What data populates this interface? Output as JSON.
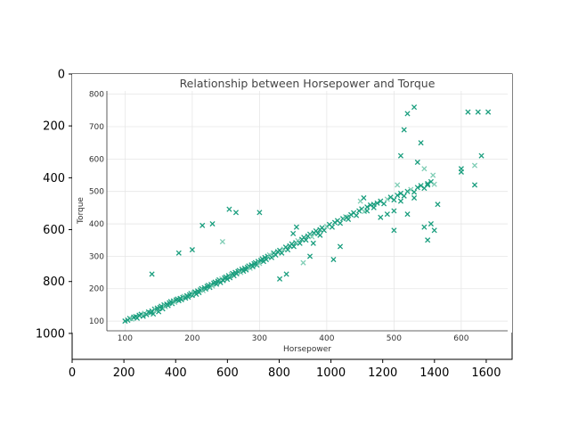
{
  "figure": {
    "outer_axes": {
      "x_ticks": [
        "0",
        "200",
        "400",
        "600",
        "800",
        "1000",
        "1200",
        "1400",
        "1600"
      ],
      "y_ticks": [
        "0",
        "200",
        "400",
        "600",
        "800",
        "1000"
      ]
    }
  },
  "chart_data": {
    "type": "scatter",
    "title": "Relationship between Horsepower and Torque",
    "xlabel": "Horsepower",
    "ylabel": "Torque",
    "xlim": [
      73,
      669
    ],
    "ylim": [
      70,
      810
    ],
    "x_ticks": [
      100,
      200,
      300,
      400,
      500,
      600
    ],
    "y_ticks": [
      100,
      200,
      300,
      400,
      500,
      600,
      700,
      800
    ],
    "grid": true,
    "marker": "x",
    "colors": {
      "primary": "#1a9e7e",
      "light": "#7fcdb5"
    },
    "points": [
      [
        100,
        100
      ],
      [
        104,
        103
      ],
      [
        107,
        108
      ],
      [
        110,
        106
      ],
      [
        113,
        112
      ],
      [
        116,
        114
      ],
      [
        118,
        109
      ],
      [
        121,
        118
      ],
      [
        124,
        121
      ],
      [
        127,
        115
      ],
      [
        129,
        124
      ],
      [
        132,
        120
      ],
      [
        135,
        128
      ],
      [
        138,
        126
      ],
      [
        140,
        131
      ],
      [
        142,
        122
      ],
      [
        144,
        137
      ],
      [
        146,
        133
      ],
      [
        148,
        140
      ],
      [
        150,
        129
      ],
      [
        152,
        142
      ],
      [
        154,
        146
      ],
      [
        156,
        138
      ],
      [
        158,
        150
      ],
      [
        160,
        144
      ],
      [
        162,
        152
      ],
      [
        164,
        148
      ],
      [
        166,
        156
      ],
      [
        168,
        160
      ],
      [
        170,
        154
      ],
      [
        172,
        162
      ],
      [
        174,
        158
      ],
      [
        176,
        165
      ],
      [
        178,
        168
      ],
      [
        180,
        163
      ],
      [
        182,
        170
      ],
      [
        184,
        166
      ],
      [
        186,
        173
      ],
      [
        188,
        176
      ],
      [
        190,
        171
      ],
      [
        192,
        178
      ],
      [
        194,
        174
      ],
      [
        196,
        181
      ],
      [
        198,
        185
      ],
      [
        200,
        179
      ],
      [
        202,
        187
      ],
      [
        204,
        190
      ],
      [
        206,
        183
      ],
      [
        208,
        193
      ],
      [
        210,
        188
      ],
      [
        212,
        196
      ],
      [
        214,
        200
      ],
      [
        216,
        194
      ],
      [
        218,
        203
      ],
      [
        220,
        199
      ],
      [
        222,
        207
      ],
      [
        224,
        210
      ],
      [
        226,
        204
      ],
      [
        228,
        213
      ],
      [
        230,
        208
      ],
      [
        232,
        217
      ],
      [
        234,
        220
      ],
      [
        236,
        214
      ],
      [
        238,
        223
      ],
      [
        240,
        227
      ],
      [
        242,
        219
      ],
      [
        244,
        230
      ],
      [
        246,
        225
      ],
      [
        248,
        233
      ],
      [
        250,
        236
      ],
      [
        252,
        229
      ],
      [
        254,
        240
      ],
      [
        256,
        234
      ],
      [
        258,
        244
      ],
      [
        260,
        247
      ],
      [
        262,
        240
      ],
      [
        264,
        250
      ],
      [
        266,
        246
      ],
      [
        268,
        253
      ],
      [
        270,
        256
      ],
      [
        272,
        250
      ],
      [
        274,
        260
      ],
      [
        276,
        254
      ],
      [
        278,
        263
      ],
      [
        280,
        258
      ],
      [
        282,
        266
      ],
      [
        284,
        270
      ],
      [
        286,
        263
      ],
      [
        288,
        273
      ],
      [
        290,
        268
      ],
      [
        292,
        277
      ],
      [
        294,
        280
      ],
      [
        296,
        273
      ],
      [
        298,
        284
      ],
      [
        300,
        278
      ],
      [
        302,
        287
      ],
      [
        304,
        292
      ],
      [
        306,
        284
      ],
      [
        308,
        296
      ],
      [
        310,
        290
      ],
      [
        312,
        300
      ],
      [
        315,
        304
      ],
      [
        318,
        296
      ],
      [
        321,
        310
      ],
      [
        324,
        304
      ],
      [
        327,
        314
      ],
      [
        330,
        318
      ],
      [
        333,
        310
      ],
      [
        336,
        322
      ],
      [
        339,
        328
      ],
      [
        342,
        320
      ],
      [
        345,
        332
      ],
      [
        348,
        338
      ],
      [
        351,
        330
      ],
      [
        354,
        342
      ],
      [
        357,
        348
      ],
      [
        360,
        340
      ],
      [
        363,
        352
      ],
      [
        366,
        358
      ],
      [
        369,
        350
      ],
      [
        372,
        362
      ],
      [
        375,
        368
      ],
      [
        378,
        360
      ],
      [
        381,
        372
      ],
      [
        384,
        378
      ],
      [
        387,
        370
      ],
      [
        390,
        382
      ],
      [
        393,
        388
      ],
      [
        396,
        380
      ],
      [
        400,
        392
      ],
      [
        404,
        398
      ],
      [
        408,
        390
      ],
      [
        412,
        404
      ],
      [
        416,
        410
      ],
      [
        420,
        402
      ],
      [
        424,
        416
      ],
      [
        428,
        422
      ],
      [
        432,
        414
      ],
      [
        436,
        428
      ],
      [
        440,
        434
      ],
      [
        444,
        426
      ],
      [
        448,
        440
      ],
      [
        452,
        446
      ],
      [
        456,
        438
      ],
      [
        460,
        452
      ],
      [
        465,
        458
      ],
      [
        470,
        450
      ],
      [
        475,
        464
      ],
      [
        480,
        470
      ],
      [
        485,
        462
      ],
      [
        490,
        476
      ],
      [
        495,
        482
      ],
      [
        500,
        474
      ],
      [
        505,
        488
      ],
      [
        510,
        494
      ],
      [
        515,
        486
      ],
      [
        520,
        500
      ],
      [
        525,
        506
      ],
      [
        530,
        498
      ],
      [
        535,
        512
      ],
      [
        540,
        518
      ],
      [
        545,
        510
      ],
      [
        550,
        524
      ],
      [
        555,
        530
      ],
      [
        560,
        522
      ],
      [
        140,
        245
      ],
      [
        215,
        395
      ],
      [
        230,
        400
      ],
      [
        255,
        445
      ],
      [
        265,
        435
      ],
      [
        300,
        435
      ],
      [
        245,
        345
      ],
      [
        180,
        310
      ],
      [
        200,
        320
      ],
      [
        330,
        230
      ],
      [
        340,
        245
      ],
      [
        350,
        370
      ],
      [
        355,
        390
      ],
      [
        365,
        280
      ],
      [
        375,
        300
      ],
      [
        380,
        340
      ],
      [
        390,
        365
      ],
      [
        410,
        290
      ],
      [
        420,
        330
      ],
      [
        430,
        420
      ],
      [
        450,
        470
      ],
      [
        455,
        480
      ],
      [
        460,
        440
      ],
      [
        470,
        460
      ],
      [
        480,
        420
      ],
      [
        490,
        430
      ],
      [
        500,
        380
      ],
      [
        505,
        520
      ],
      [
        510,
        610
      ],
      [
        515,
        690
      ],
      [
        520,
        740
      ],
      [
        530,
        760
      ],
      [
        535,
        590
      ],
      [
        540,
        650
      ],
      [
        545,
        570
      ],
      [
        550,
        520
      ],
      [
        555,
        400
      ],
      [
        560,
        380
      ],
      [
        565,
        460
      ],
      [
        600,
        560
      ],
      [
        610,
        745
      ],
      [
        620,
        580
      ],
      [
        625,
        745
      ],
      [
        630,
        610
      ],
      [
        520,
        430
      ],
      [
        530,
        480
      ],
      [
        545,
        390
      ],
      [
        550,
        350
      ],
      [
        558,
        550
      ],
      [
        600,
        570
      ],
      [
        620,
        520
      ],
      [
        640,
        745
      ],
      [
        500,
        440
      ],
      [
        510,
        470
      ]
    ]
  }
}
